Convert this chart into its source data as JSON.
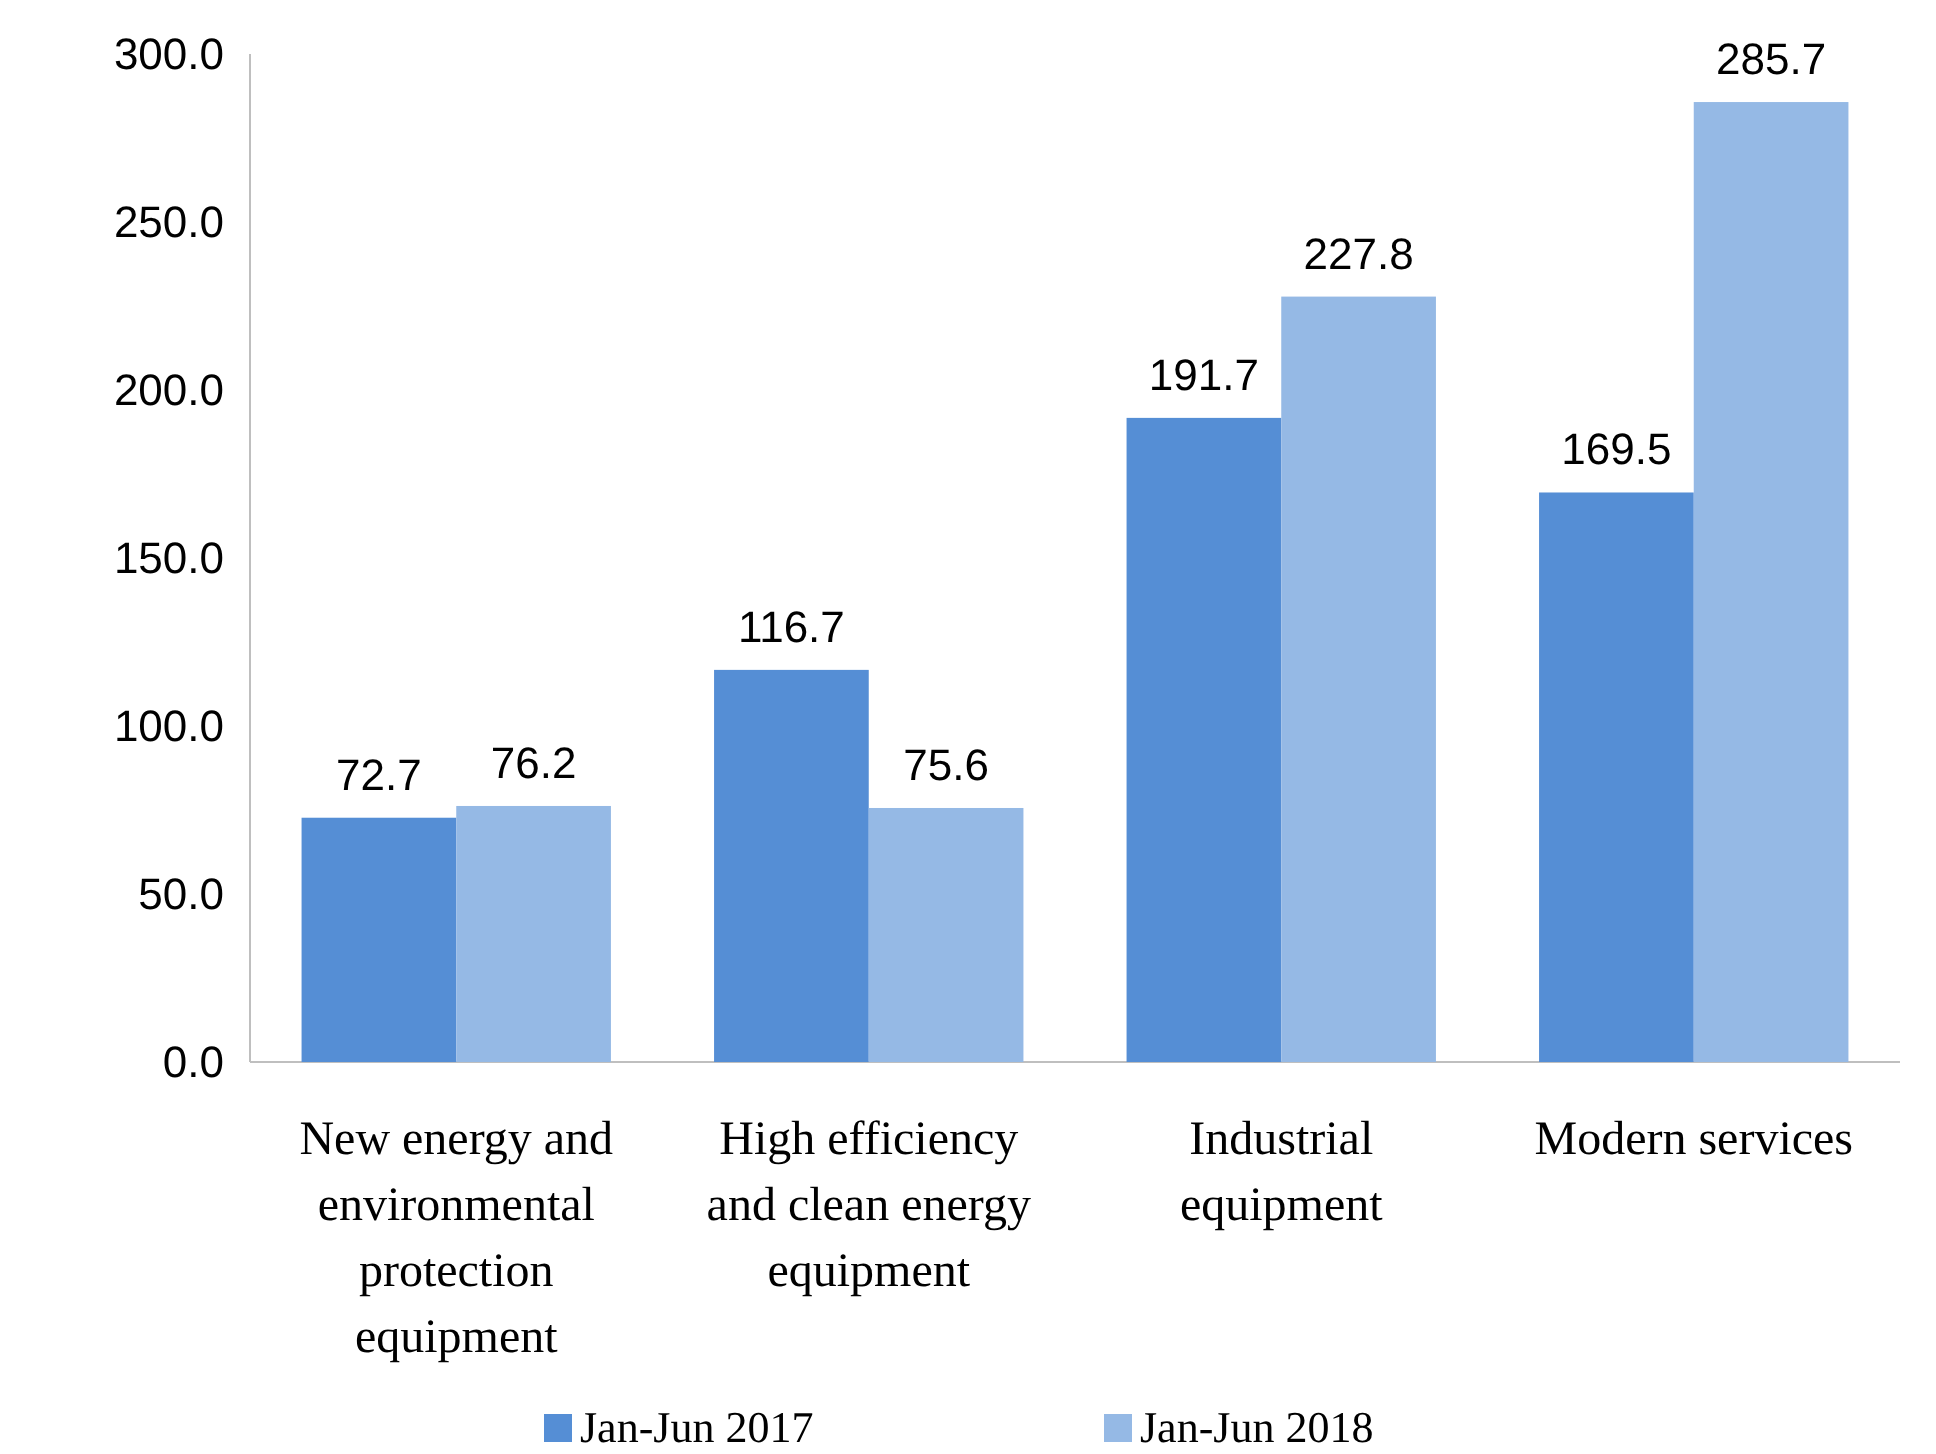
{
  "chart_data": {
    "type": "bar",
    "categories": [
      "New energy and environmental protection equipment",
      "High efficiency and clean energy equipment",
      "Industrial equipment",
      "Modern services"
    ],
    "series": [
      {
        "name": "Jan-Jun 2017",
        "color": "#558ed5",
        "values": [
          72.7,
          116.7,
          191.7,
          169.5
        ]
      },
      {
        "name": "Jan-Jun 2018",
        "color": "#95b9e5",
        "values": [
          76.2,
          75.6,
          227.8,
          285.7
        ]
      }
    ],
    "ylim": [
      0,
      300
    ],
    "yticks": [
      {
        "value": 0,
        "label": "0.0"
      },
      {
        "value": 50,
        "label": "50.0"
      },
      {
        "value": 100,
        "label": "100.0"
      },
      {
        "value": 150,
        "label": "150.0"
      },
      {
        "value": 200,
        "label": "200.0"
      },
      {
        "value": 250,
        "label": "250.0"
      },
      {
        "value": 300,
        "label": "300.0"
      }
    ],
    "data_labels": true,
    "grid": false,
    "legend": "bottom"
  }
}
